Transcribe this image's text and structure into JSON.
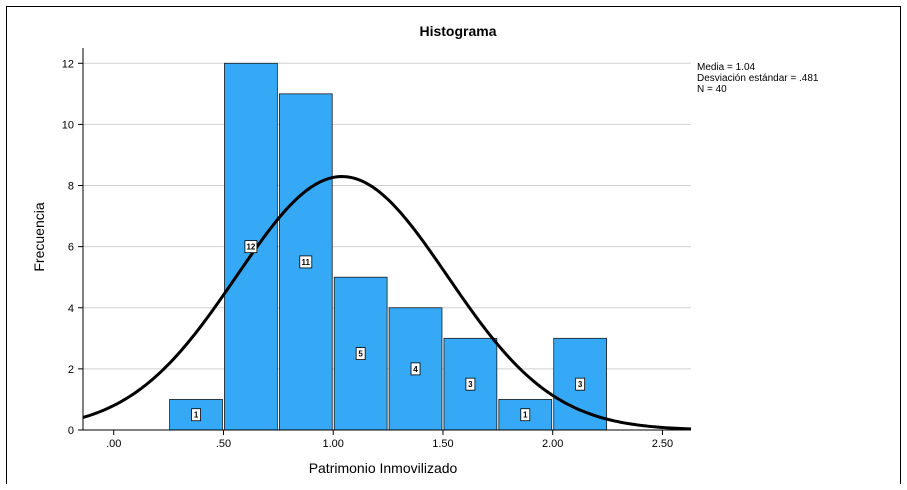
{
  "chart_data": {
    "type": "bar",
    "title": "Histograma",
    "xlabel": "Patrimonio Inmovilizado",
    "ylabel": "Frecuencia",
    "xlim": [
      -0.14,
      2.63
    ],
    "ylim": [
      0,
      12.5
    ],
    "x_ticks": [
      0.0,
      0.5,
      1.0,
      1.5,
      2.0,
      2.5
    ],
    "x_tick_labels": [
      ".00",
      ".50",
      "1.00",
      "1.50",
      "2.00",
      "2.50"
    ],
    "y_ticks": [
      0,
      2,
      4,
      6,
      8,
      10,
      12
    ],
    "y_tick_labels": [
      "0",
      "2",
      "4",
      "6",
      "8",
      "10",
      "12"
    ],
    "bins": [
      {
        "x0": 0.25,
        "x1": 0.5,
        "value": 1,
        "label": "1"
      },
      {
        "x0": 0.5,
        "x1": 0.75,
        "value": 12,
        "label": "12"
      },
      {
        "x0": 0.75,
        "x1": 1.0,
        "value": 11,
        "label": "11"
      },
      {
        "x0": 1.0,
        "x1": 1.25,
        "value": 5,
        "label": "5"
      },
      {
        "x0": 1.25,
        "x1": 1.5,
        "value": 4,
        "label": "4"
      },
      {
        "x0": 1.5,
        "x1": 1.75,
        "value": 3,
        "label": "3"
      },
      {
        "x0": 1.75,
        "x1": 2.0,
        "value": 1,
        "label": "1"
      },
      {
        "x0": 2.0,
        "x1": 2.25,
        "value": 3,
        "label": "3"
      }
    ],
    "normal_curve": {
      "mean": 1.04,
      "sd": 0.481,
      "n": 40,
      "bin_width": 0.25
    },
    "stats_text": [
      "Media = 1.04",
      "Desviación estándar = .481",
      "N = 40"
    ],
    "grid": true,
    "colors": {
      "bar_fill": "#35a9f5",
      "bar_stroke": "#1a1a1a",
      "curve": "#000000",
      "grid": "#d0d0d0"
    }
  }
}
